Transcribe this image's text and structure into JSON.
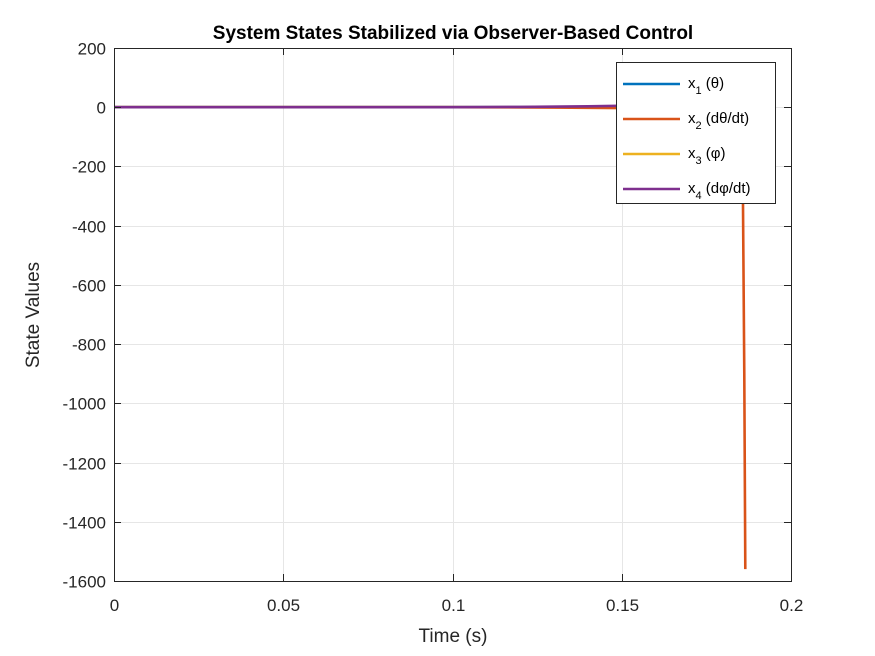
{
  "chart_data": {
    "type": "line",
    "title": "System States Stabilized via Observer-Based Control",
    "xlabel": "Time (s)",
    "ylabel": "State Values",
    "xlim": [
      0,
      0.2
    ],
    "ylim": [
      -1600,
      200
    ],
    "xticks": [
      0,
      0.05,
      0.1,
      0.15,
      0.2
    ],
    "xtick_labels": [
      "0",
      "0.05",
      "0.1",
      "0.15",
      "0.2"
    ],
    "yticks": [
      200,
      0,
      -200,
      -400,
      -600,
      -800,
      -1000,
      -1200,
      -1400,
      -1600
    ],
    "ytick_labels": [
      "200",
      "0",
      "-200",
      "-400",
      "-600",
      "-800",
      "-1000",
      "-1200",
      "-1400",
      "-1600"
    ],
    "grid": true,
    "legend_location": "top-right",
    "series": [
      {
        "name": "x1 (θ)",
        "legend_main": "x",
        "legend_sub": "1",
        "legend_rest": " (θ)",
        "color": "#0072BD",
        "x": [
          0,
          0.1,
          0.14,
          0.16,
          0.175,
          0.18,
          0.1855
        ],
        "y": [
          0,
          0,
          0.5,
          2,
          5,
          8,
          12
        ]
      },
      {
        "name": "x2 (dθ/dt)",
        "legend_main": "x",
        "legend_sub": "2",
        "legend_rest": " (dθ/dt)",
        "color": "#D95319",
        "x": [
          0,
          0.1,
          0.13,
          0.15,
          0.17,
          0.18,
          0.185,
          0.1858,
          0.1862,
          0.1865
        ],
        "y": [
          0,
          0,
          -1,
          -3,
          -8,
          -20,
          -60,
          -300,
          -900,
          -1560
        ]
      },
      {
        "name": "x3 (φ)",
        "legend_main": "x",
        "legend_sub": "3",
        "legend_rest": " (φ)",
        "color": "#EDB120",
        "x": [
          0,
          0.1,
          0.14,
          0.16,
          0.175,
          0.18,
          0.1855
        ],
        "y": [
          0,
          0,
          0.3,
          1.5,
          4,
          7,
          10
        ]
      },
      {
        "name": "x4 (dφ/dt)",
        "legend_main": "x",
        "legend_sub": "4",
        "legend_rest": " (dφ/dt)",
        "color": "#7E2F8E",
        "x": [
          0,
          0.1,
          0.12,
          0.14,
          0.155,
          0.17,
          0.18,
          0.1855
        ],
        "y": [
          0,
          0,
          1,
          3,
          6,
          10,
          14,
          18
        ]
      }
    ]
  }
}
